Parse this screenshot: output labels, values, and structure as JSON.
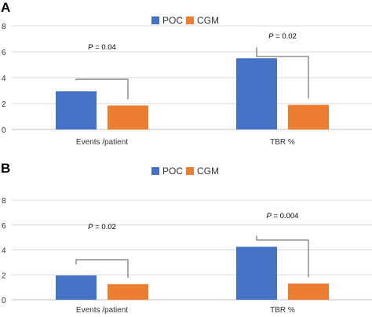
{
  "colors": {
    "POC": "#4472c4",
    "CGM": "#ed7d31"
  },
  "chart_data": [
    {
      "type": "bar",
      "panel": "A",
      "categories": [
        "Events /patient",
        "TBR  %"
      ],
      "series": [
        {
          "name": "POC",
          "values": [
            2.95,
            5.5
          ]
        },
        {
          "name": "CGM",
          "values": [
            1.85,
            1.9
          ]
        }
      ],
      "ylim": [
        0,
        8
      ],
      "yticks": [
        "0",
        "2",
        "4",
        "6",
        "8"
      ],
      "legend": "top-center",
      "annotations": [
        {
          "category": 0,
          "p_label": "P",
          "p_value": " = 0.04"
        },
        {
          "category": 1,
          "p_label": "P",
          "p_value": " = 0.02"
        }
      ]
    },
    {
      "type": "bar",
      "panel": "B",
      "categories": [
        "Events /patient",
        "TBR %"
      ],
      "series": [
        {
          "name": "POC",
          "values": [
            1.95,
            4.25
          ]
        },
        {
          "name": "CGM",
          "values": [
            1.25,
            1.3
          ]
        }
      ],
      "ylim": [
        0,
        8
      ],
      "yticks": [
        "0",
        "2",
        "4",
        "6",
        "8"
      ],
      "legend": "top-center",
      "annotations": [
        {
          "category": 0,
          "p_label": "P",
          "p_value": " = 0.02"
        },
        {
          "category": 1,
          "p_label": "P",
          "p_value": " = 0.004"
        }
      ]
    }
  ]
}
